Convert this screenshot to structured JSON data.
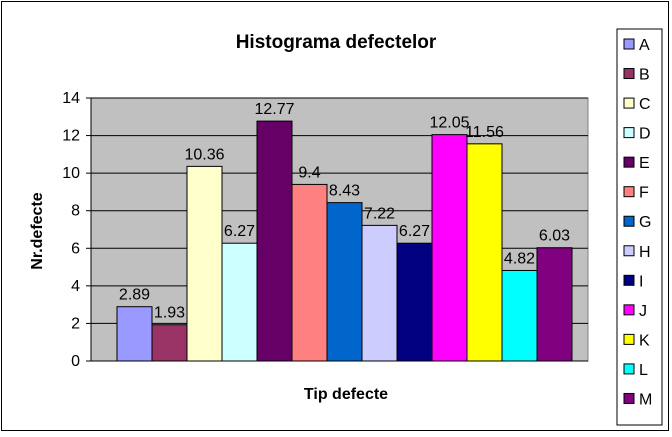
{
  "chart_data": {
    "type": "bar",
    "title": "Histograma defectelor",
    "xlabel": "Tip defecte",
    "ylabel": "Nr.defecte",
    "ylim": [
      0,
      14
    ],
    "yticks": [
      "0",
      "2",
      "4",
      "6",
      "8",
      "10",
      "12",
      "14"
    ],
    "grid": true,
    "legend_position": "right",
    "plot_background": "#c0c0c0",
    "series": [
      {
        "name": "A",
        "value": 2.89,
        "label": "2.89",
        "color": "#9999ff"
      },
      {
        "name": "B",
        "value": 1.93,
        "label": "1.93",
        "color": "#993366"
      },
      {
        "name": "C",
        "value": 10.36,
        "label": "10.36",
        "color": "#ffffcc"
      },
      {
        "name": "D",
        "value": 6.27,
        "label": "6.27",
        "color": "#ccffff"
      },
      {
        "name": "E",
        "value": 12.77,
        "label": "12.77",
        "color": "#660066"
      },
      {
        "name": "F",
        "value": 9.4,
        "label": "9.4",
        "color": "#ff8080"
      },
      {
        "name": "G",
        "value": 8.43,
        "label": "8.43",
        "color": "#0066cc"
      },
      {
        "name": "H",
        "value": 7.22,
        "label": "7.22",
        "color": "#ccccff"
      },
      {
        "name": "I",
        "value": 6.27,
        "label": "6.27",
        "color": "#000080"
      },
      {
        "name": "J",
        "value": 12.05,
        "label": "12.05",
        "color": "#ff00ff"
      },
      {
        "name": "K",
        "value": 11.56,
        "label": "11.56",
        "color": "#ffff00"
      },
      {
        "name": "L",
        "value": 4.82,
        "label": "4.82",
        "color": "#00ffff"
      },
      {
        "name": "M",
        "value": 6.03,
        "label": "6.03",
        "color": "#800080"
      }
    ]
  }
}
